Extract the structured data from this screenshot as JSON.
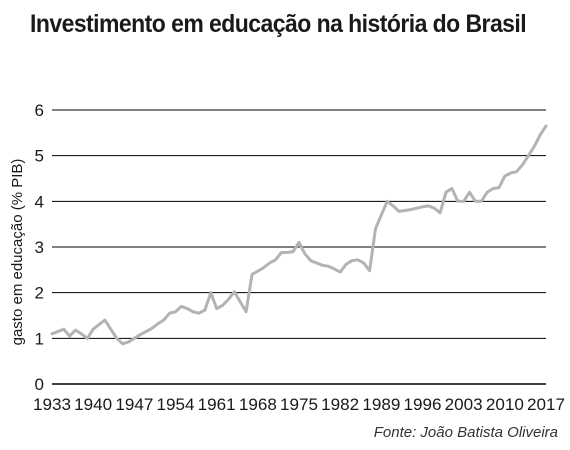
{
  "title": "Investimento em educação na história do Brasil",
  "source": "Fonte: João Batista Oliveira",
  "chart_data": {
    "type": "line",
    "ylabel": "gasto em educação (% PIB)",
    "xlabel": "",
    "ylim": [
      0,
      6
    ],
    "y_ticks": [
      "0",
      "1",
      "2",
      "3",
      "4",
      "5",
      "6"
    ],
    "x_ticks": [
      "1933",
      "1940",
      "1947",
      "1954",
      "1961",
      "1968",
      "1975",
      "1982",
      "1989",
      "1996",
      "2003",
      "2010",
      "2017"
    ],
    "xlim": [
      1933,
      2017
    ],
    "grid": "horizontal",
    "line_color": "#b3b3b3",
    "x": [
      1933,
      1934,
      1935,
      1936,
      1937,
      1938,
      1939,
      1940,
      1941,
      1942,
      1943,
      1944,
      1945,
      1946,
      1947,
      1948,
      1949,
      1950,
      1951,
      1952,
      1953,
      1954,
      1955,
      1956,
      1957,
      1958,
      1959,
      1960,
      1961,
      1962,
      1963,
      1964,
      1965,
      1966,
      1967,
      1968,
      1969,
      1970,
      1971,
      1972,
      1973,
      1974,
      1975,
      1976,
      1977,
      1978,
      1979,
      1980,
      1981,
      1982,
      1983,
      1984,
      1985,
      1986,
      1987,
      1988,
      1989,
      1990,
      1991,
      1992,
      1993,
      1994,
      1995,
      1996,
      1997,
      1998,
      1999,
      2000,
      2001,
      2002,
      2003,
      2004,
      2005,
      2006,
      2007,
      2008,
      2009,
      2010,
      2011,
      2012,
      2013,
      2014,
      2015,
      2016,
      2017
    ],
    "values": [
      1.1,
      1.15,
      1.2,
      1.05,
      1.18,
      1.1,
      1.0,
      1.2,
      1.3,
      1.4,
      1.2,
      1.0,
      0.88,
      0.92,
      1.0,
      1.08,
      1.15,
      1.22,
      1.32,
      1.4,
      1.55,
      1.58,
      1.7,
      1.65,
      1.58,
      1.55,
      1.62,
      2.0,
      1.65,
      1.72,
      1.85,
      2.02,
      1.8,
      1.58,
      2.4,
      2.47,
      2.55,
      2.65,
      2.72,
      2.88,
      2.88,
      2.9,
      3.1,
      2.85,
      2.7,
      2.65,
      2.6,
      2.58,
      2.52,
      2.45,
      2.62,
      2.7,
      2.72,
      2.65,
      2.48,
      3.4,
      3.7,
      4.0,
      3.9,
      3.78,
      3.8,
      3.82,
      3.85,
      3.88,
      3.9,
      3.85,
      3.75,
      4.2,
      4.28,
      4.0,
      4.0,
      4.2,
      4.0,
      4.0,
      4.2,
      4.28,
      4.3,
      4.55,
      4.62,
      4.65,
      4.8,
      5.0,
      5.2,
      5.45,
      5.65
    ]
  }
}
